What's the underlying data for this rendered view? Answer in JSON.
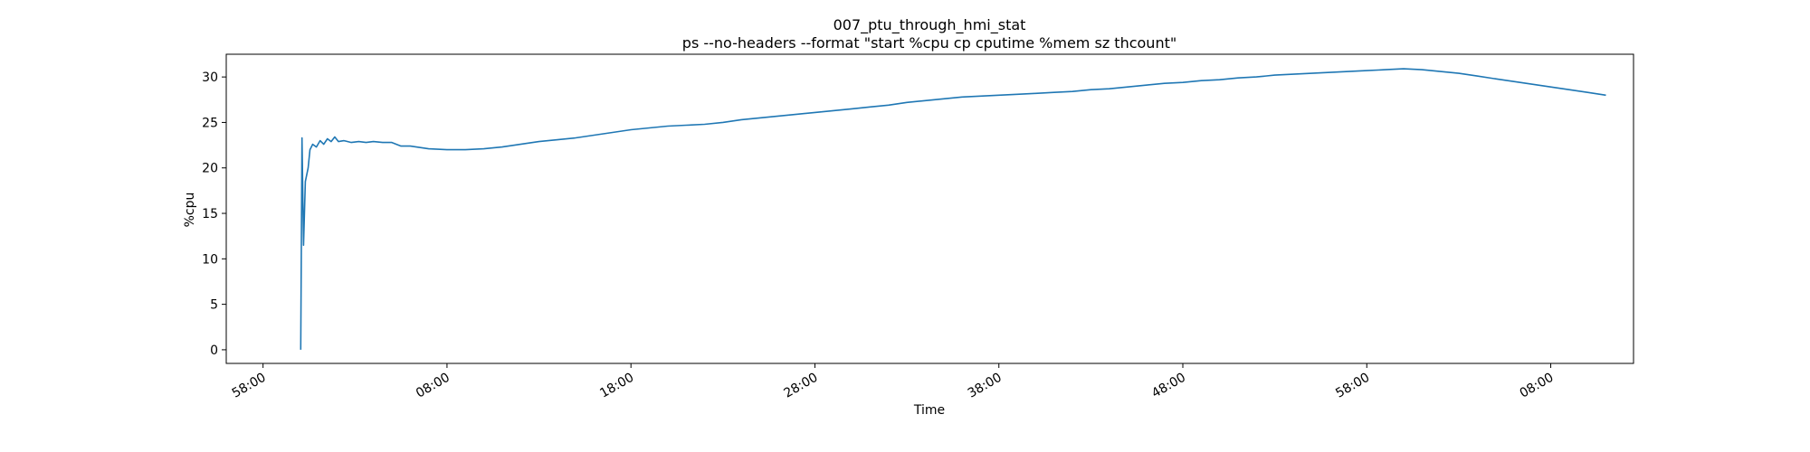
{
  "chart_data": {
    "type": "line",
    "title": "007_ptu_through_hmi_stat",
    "subtitle": "ps --no-headers --format \"start %cpu cp cputime %mem sz thcount\"",
    "xlabel": "Time",
    "ylabel": "%cpu",
    "x_unit": "minutes",
    "xlim": [
      -4,
      72.5
    ],
    "ylim": [
      -1.5,
      32.5
    ],
    "grid": false,
    "legend": "none",
    "line_color": "#1f77b4",
    "x_ticks": [
      {
        "value": -2,
        "label": "58:00"
      },
      {
        "value": 8,
        "label": "08:00"
      },
      {
        "value": 18,
        "label": "18:00"
      },
      {
        "value": 28,
        "label": "28:00"
      },
      {
        "value": 38,
        "label": "38:00"
      },
      {
        "value": 48,
        "label": "48:00"
      },
      {
        "value": 58,
        "label": "58:00"
      },
      {
        "value": 68,
        "label": "08:00"
      }
    ],
    "y_ticks": [
      {
        "value": 0,
        "label": "0"
      },
      {
        "value": 5,
        "label": "5"
      },
      {
        "value": 10,
        "label": "10"
      },
      {
        "value": 15,
        "label": "15"
      },
      {
        "value": 20,
        "label": "20"
      },
      {
        "value": 25,
        "label": "25"
      },
      {
        "value": 30,
        "label": "30"
      }
    ],
    "series": [
      {
        "values": [
          [
            0.05,
            0.0
          ],
          [
            0.12,
            23.3
          ],
          [
            0.2,
            11.5
          ],
          [
            0.3,
            18.5
          ],
          [
            0.45,
            20.0
          ],
          [
            0.55,
            22.0
          ],
          [
            0.7,
            22.6
          ],
          [
            0.9,
            22.3
          ],
          [
            1.1,
            23.0
          ],
          [
            1.3,
            22.6
          ],
          [
            1.5,
            23.2
          ],
          [
            1.7,
            22.9
          ],
          [
            1.9,
            23.4
          ],
          [
            2.1,
            22.9
          ],
          [
            2.4,
            23.0
          ],
          [
            2.8,
            22.8
          ],
          [
            3.2,
            22.9
          ],
          [
            3.6,
            22.8
          ],
          [
            4.0,
            22.9
          ],
          [
            4.5,
            22.8
          ],
          [
            5.0,
            22.8
          ],
          [
            5.5,
            22.4
          ],
          [
            6.0,
            22.4
          ],
          [
            7.0,
            22.1
          ],
          [
            8.0,
            22.0
          ],
          [
            9.0,
            22.0
          ],
          [
            10.0,
            22.1
          ],
          [
            11.0,
            22.3
          ],
          [
            12.0,
            22.6
          ],
          [
            13.0,
            22.9
          ],
          [
            14.0,
            23.1
          ],
          [
            15.0,
            23.3
          ],
          [
            16.0,
            23.6
          ],
          [
            17.0,
            23.9
          ],
          [
            18.0,
            24.2
          ],
          [
            19.0,
            24.4
          ],
          [
            20.0,
            24.6
          ],
          [
            21.0,
            24.7
          ],
          [
            22.0,
            24.8
          ],
          [
            23.0,
            25.0
          ],
          [
            24.0,
            25.3
          ],
          [
            25.0,
            25.5
          ],
          [
            26.0,
            25.7
          ],
          [
            27.0,
            25.9
          ],
          [
            28.0,
            26.1
          ],
          [
            29.0,
            26.3
          ],
          [
            30.0,
            26.5
          ],
          [
            31.0,
            26.7
          ],
          [
            32.0,
            26.9
          ],
          [
            33.0,
            27.2
          ],
          [
            34.0,
            27.4
          ],
          [
            35.0,
            27.6
          ],
          [
            36.0,
            27.8
          ],
          [
            37.0,
            27.9
          ],
          [
            38.0,
            28.0
          ],
          [
            39.0,
            28.1
          ],
          [
            40.0,
            28.2
          ],
          [
            41.0,
            28.3
          ],
          [
            42.0,
            28.4
          ],
          [
            43.0,
            28.6
          ],
          [
            44.0,
            28.7
          ],
          [
            45.0,
            28.9
          ],
          [
            46.0,
            29.1
          ],
          [
            47.0,
            29.3
          ],
          [
            48.0,
            29.4
          ],
          [
            49.0,
            29.6
          ],
          [
            50.0,
            29.7
          ],
          [
            51.0,
            29.9
          ],
          [
            52.0,
            30.0
          ],
          [
            53.0,
            30.2
          ],
          [
            54.0,
            30.3
          ],
          [
            55.0,
            30.4
          ],
          [
            56.0,
            30.5
          ],
          [
            57.0,
            30.6
          ],
          [
            58.0,
            30.7
          ],
          [
            59.0,
            30.8
          ],
          [
            60.0,
            30.9
          ],
          [
            61.0,
            30.8
          ],
          [
            62.0,
            30.6
          ],
          [
            63.0,
            30.4
          ],
          [
            64.0,
            30.1
          ],
          [
            65.0,
            29.8
          ],
          [
            66.0,
            29.5
          ],
          [
            67.0,
            29.2
          ],
          [
            68.0,
            28.9
          ],
          [
            69.0,
            28.6
          ],
          [
            70.0,
            28.3
          ],
          [
            71.0,
            28.0
          ]
        ]
      }
    ]
  }
}
